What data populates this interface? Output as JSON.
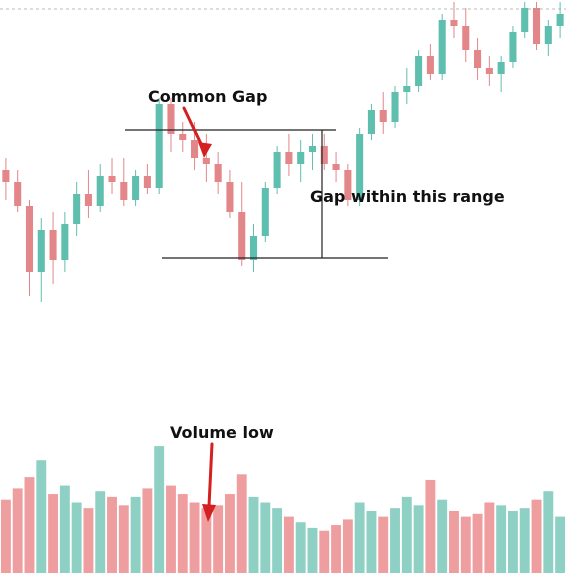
{
  "colors": {
    "up": "#5fbfae",
    "down": "#e2868a",
    "vol_up": "#8fd0c5",
    "vol_down": "#ef9ea0",
    "arrow": "#d42020",
    "line": "#222222",
    "dashed": "#bbbbbb"
  },
  "annotations": {
    "common_gap": "Common Gap",
    "gap_range": "Gap within this range",
    "volume_low": "Volume low"
  },
  "chart_data": {
    "type": "candlestick",
    "title": "",
    "xlabel": "",
    "ylabel": "",
    "ylim": [
      0,
      100
    ],
    "volume_ylim": [
      0,
      100
    ],
    "range_high": 60,
    "range_low": 16,
    "candles": [
      [
        44,
        48,
        34,
        40
      ],
      [
        40,
        44,
        30,
        32
      ],
      [
        32,
        34,
        2,
        10
      ],
      [
        10,
        28,
        0,
        24
      ],
      [
        24,
        30,
        6,
        14
      ],
      [
        14,
        30,
        10,
        26
      ],
      [
        26,
        40,
        22,
        36
      ],
      [
        36,
        44,
        28,
        32
      ],
      [
        32,
        46,
        30,
        42
      ],
      [
        42,
        48,
        36,
        40
      ],
      [
        40,
        48,
        32,
        34
      ],
      [
        34,
        44,
        32,
        42
      ],
      [
        42,
        46,
        36,
        38
      ],
      [
        38,
        68,
        36,
        66
      ],
      [
        66,
        68,
        50,
        56
      ],
      [
        56,
        60,
        50,
        54
      ],
      [
        54,
        60,
        44,
        48
      ],
      [
        48,
        56,
        40,
        46
      ],
      [
        46,
        50,
        36,
        40
      ],
      [
        40,
        44,
        28,
        30
      ],
      [
        30,
        40,
        12,
        14
      ],
      [
        14,
        26,
        10,
        22
      ],
      [
        22,
        40,
        20,
        38
      ],
      [
        38,
        52,
        36,
        50
      ],
      [
        50,
        56,
        42,
        46
      ],
      [
        46,
        54,
        40,
        50
      ],
      [
        50,
        56,
        44,
        52
      ],
      [
        52,
        56,
        44,
        46
      ],
      [
        46,
        50,
        40,
        44
      ],
      [
        44,
        46,
        32,
        34
      ],
      [
        34,
        58,
        32,
        56
      ],
      [
        56,
        66,
        54,
        64
      ],
      [
        64,
        70,
        56,
        60
      ],
      [
        60,
        72,
        58,
        70
      ],
      [
        70,
        78,
        66,
        72
      ],
      [
        72,
        84,
        70,
        82
      ],
      [
        82,
        86,
        74,
        76
      ],
      [
        76,
        96,
        74,
        94
      ],
      [
        94,
        100,
        88,
        92
      ],
      [
        92,
        98,
        80,
        84
      ],
      [
        84,
        88,
        74,
        78
      ],
      [
        78,
        82,
        72,
        76
      ],
      [
        76,
        82,
        70,
        80
      ],
      [
        80,
        92,
        78,
        90
      ],
      [
        90,
        100,
        88,
        98
      ],
      [
        98,
        100,
        84,
        86
      ],
      [
        86,
        94,
        82,
        92
      ],
      [
        92,
        100,
        88,
        96
      ]
    ],
    "volume": [
      52,
      60,
      68,
      80,
      56,
      62,
      50,
      46,
      58,
      54,
      48,
      54,
      60,
      90,
      62,
      56,
      50,
      46,
      48,
      56,
      70,
      54,
      50,
      46,
      40,
      36,
      32,
      30,
      34,
      38,
      50,
      44,
      40,
      46,
      54,
      48,
      66,
      52,
      44,
      40,
      42,
      50,
      48,
      44,
      46,
      52,
      58,
      40
    ]
  }
}
